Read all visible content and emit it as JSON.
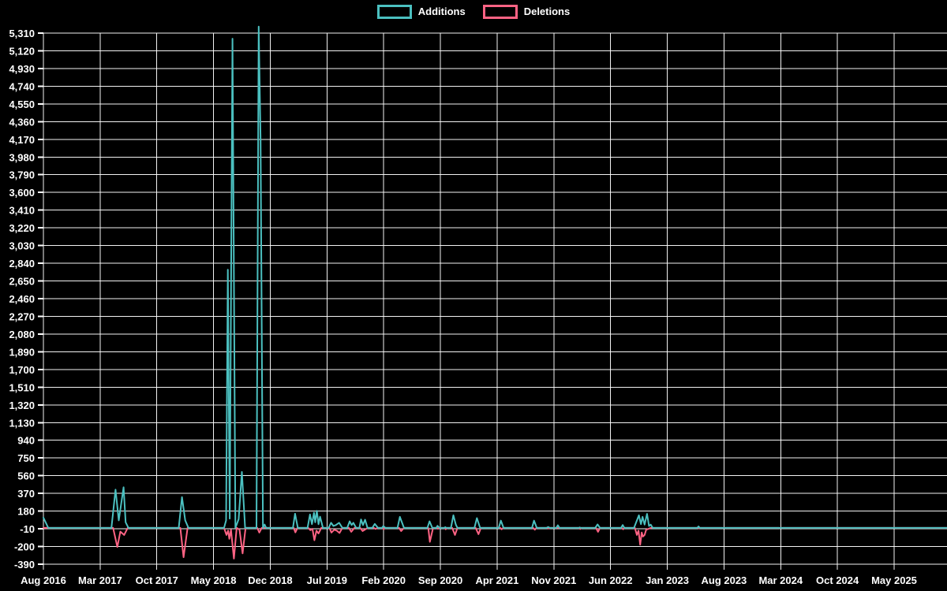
{
  "legend": {
    "position": "top",
    "items": [
      {
        "label": "Additions",
        "color": "#4bc0c0"
      },
      {
        "label": "Deletions",
        "color": "#ff6384"
      }
    ]
  },
  "chart_data": {
    "type": "line",
    "title": "",
    "background_color": "#000000",
    "grid_color": "#ffffff",
    "label_color": "#ffffff",
    "grid": true,
    "legend_position": "top",
    "x_axis": {
      "unit": "months since Aug 2016",
      "tick_labels": [
        "Aug 2016",
        "Mar 2017",
        "Oct 2017",
        "May 2018",
        "Dec 2018",
        "Jul 2019",
        "Feb 2020",
        "Sep 2020",
        "Apr 2021",
        "Nov 2021",
        "Jun 2022",
        "Jan 2023",
        "Aug 2023",
        "Mar 2024",
        "Oct 2024",
        "May 2025"
      ],
      "tick_positions_months": [
        0,
        7,
        14,
        21,
        28,
        35,
        42,
        49,
        56,
        63,
        70,
        77,
        84,
        91,
        98,
        105
      ],
      "data_end_month": 111.8
    },
    "y_axis": {
      "min": -390,
      "max": 5310,
      "step": 190,
      "tick_labels": [
        "5,310",
        "5,120",
        "4,930",
        "4,740",
        "4,550",
        "4,360",
        "4,170",
        "3,980",
        "3,790",
        "3,600",
        "3,410",
        "3,220",
        "3,030",
        "2,840",
        "2,650",
        "2,460",
        "2,270",
        "2,080",
        "1,890",
        "1,700",
        "1,510",
        "1,320",
        "1,130",
        "940",
        "750",
        "560",
        "370",
        "180",
        "-10",
        "-200",
        "-390"
      ]
    },
    "series": [
      {
        "name": "Additions",
        "color": "#4bc0c0",
        "points": [
          [
            0,
            110
          ],
          [
            0.6,
            0
          ],
          [
            8.4,
            0
          ],
          [
            8.9,
            410
          ],
          [
            9.3,
            80
          ],
          [
            9.9,
            435
          ],
          [
            10.15,
            60
          ],
          [
            10.5,
            0
          ],
          [
            16.7,
            0
          ],
          [
            17.1,
            330
          ],
          [
            17.5,
            80
          ],
          [
            17.9,
            0
          ],
          [
            22.3,
            0
          ],
          [
            22.55,
            80
          ],
          [
            22.76,
            2770
          ],
          [
            23.0,
            100
          ],
          [
            23.34,
            5250
          ],
          [
            23.7,
            0
          ],
          [
            24.1,
            93
          ],
          [
            24.5,
            600
          ],
          [
            24.9,
            0
          ],
          [
            26.3,
            0
          ],
          [
            26.57,
            5380
          ],
          [
            26.81,
            4160
          ],
          [
            27.1,
            0
          ],
          [
            27.3,
            35
          ],
          [
            27.5,
            0
          ],
          [
            30.8,
            0
          ],
          [
            31.06,
            152
          ],
          [
            31.4,
            0
          ],
          [
            32.6,
            0
          ],
          [
            32.9,
            144
          ],
          [
            33.15,
            40
          ],
          [
            33.4,
            163
          ],
          [
            33.55,
            60
          ],
          [
            33.75,
            183
          ],
          [
            33.95,
            40
          ],
          [
            34.15,
            120
          ],
          [
            34.5,
            0
          ],
          [
            35.2,
            0
          ],
          [
            35.5,
            55
          ],
          [
            35.8,
            20
          ],
          [
            36.1,
            30
          ],
          [
            36.5,
            55
          ],
          [
            36.9,
            0
          ],
          [
            37.5,
            0
          ],
          [
            37.8,
            70
          ],
          [
            38.05,
            30
          ],
          [
            38.25,
            55
          ],
          [
            38.6,
            0
          ],
          [
            39.0,
            0
          ],
          [
            39.2,
            90
          ],
          [
            39.45,
            30
          ],
          [
            39.7,
            88
          ],
          [
            40.0,
            0
          ],
          [
            40.6,
            0
          ],
          [
            40.9,
            42
          ],
          [
            41.3,
            0
          ],
          [
            41.8,
            0
          ],
          [
            41.95,
            20
          ],
          [
            42.2,
            0
          ],
          [
            43.7,
            0
          ],
          [
            44.0,
            118
          ],
          [
            44.5,
            0
          ],
          [
            47.4,
            0
          ],
          [
            47.66,
            70
          ],
          [
            48.0,
            0
          ],
          [
            48.5,
            0
          ],
          [
            48.64,
            22
          ],
          [
            48.9,
            0
          ],
          [
            49.5,
            0
          ],
          [
            49.6,
            8
          ],
          [
            49.7,
            0
          ],
          [
            50.3,
            0
          ],
          [
            50.6,
            135
          ],
          [
            50.9,
            35
          ],
          [
            51.1,
            0
          ],
          [
            53.2,
            0
          ],
          [
            53.5,
            105
          ],
          [
            53.9,
            0
          ],
          [
            56.2,
            0
          ],
          [
            56.46,
            78
          ],
          [
            56.8,
            0
          ],
          [
            60.3,
            0
          ],
          [
            60.56,
            78
          ],
          [
            60.9,
            0
          ],
          [
            62.1,
            0
          ],
          [
            62.3,
            10
          ],
          [
            62.5,
            0
          ],
          [
            63.3,
            0
          ],
          [
            63.5,
            28
          ],
          [
            63.7,
            0
          ],
          [
            66.1,
            0
          ],
          [
            66.2,
            5
          ],
          [
            66.3,
            0
          ],
          [
            68.1,
            0
          ],
          [
            68.4,
            37
          ],
          [
            68.7,
            0
          ],
          [
            71.3,
            0
          ],
          [
            71.5,
            30
          ],
          [
            71.7,
            0
          ],
          [
            72.9,
            0
          ],
          [
            73.5,
            135
          ],
          [
            73.75,
            40
          ],
          [
            73.95,
            118
          ],
          [
            74.2,
            35
          ],
          [
            74.5,
            150
          ],
          [
            74.75,
            20
          ],
          [
            74.95,
            35
          ],
          [
            75.2,
            0
          ],
          [
            80.7,
            0
          ],
          [
            80.86,
            15
          ],
          [
            81.0,
            0
          ],
          [
            111.8,
            0
          ]
        ]
      },
      {
        "name": "Deletions",
        "color": "#ff6384",
        "points": [
          [
            0,
            0
          ],
          [
            8.6,
            0
          ],
          [
            9.13,
            -205
          ],
          [
            9.5,
            -40
          ],
          [
            9.96,
            -76
          ],
          [
            10.4,
            0
          ],
          [
            16.9,
            0
          ],
          [
            17.3,
            -315
          ],
          [
            17.8,
            0
          ],
          [
            22.3,
            0
          ],
          [
            22.6,
            -76
          ],
          [
            22.8,
            -30
          ],
          [
            22.95,
            -118
          ],
          [
            23.15,
            -20
          ],
          [
            23.51,
            -330
          ],
          [
            23.85,
            0
          ],
          [
            24.2,
            -20
          ],
          [
            24.58,
            -273
          ],
          [
            24.95,
            0
          ],
          [
            26.4,
            0
          ],
          [
            26.65,
            -50
          ],
          [
            26.95,
            0
          ],
          [
            30.9,
            0
          ],
          [
            31.1,
            -48
          ],
          [
            31.35,
            0
          ],
          [
            32.7,
            0
          ],
          [
            32.95,
            -25
          ],
          [
            33.2,
            -10
          ],
          [
            33.45,
            -133
          ],
          [
            33.7,
            -30
          ],
          [
            33.95,
            -60
          ],
          [
            34.3,
            0
          ],
          [
            35.3,
            0
          ],
          [
            35.55,
            -50
          ],
          [
            35.9,
            -20
          ],
          [
            36.2,
            -30
          ],
          [
            36.55,
            -55
          ],
          [
            36.9,
            0
          ],
          [
            37.7,
            0
          ],
          [
            38.0,
            -42
          ],
          [
            38.4,
            0
          ],
          [
            39.1,
            0
          ],
          [
            39.4,
            -34
          ],
          [
            39.75,
            -15
          ],
          [
            40.0,
            0
          ],
          [
            40.8,
            0
          ],
          [
            41.0,
            -12
          ],
          [
            41.2,
            0
          ],
          [
            41.9,
            0
          ],
          [
            42.0,
            -15
          ],
          [
            42.15,
            0
          ],
          [
            43.9,
            0
          ],
          [
            44.15,
            -34
          ],
          [
            44.5,
            0
          ],
          [
            47.5,
            0
          ],
          [
            47.7,
            -150
          ],
          [
            48.1,
            0
          ],
          [
            48.6,
            0
          ],
          [
            48.7,
            -10
          ],
          [
            48.85,
            0
          ],
          [
            49.55,
            0
          ],
          [
            49.65,
            -15
          ],
          [
            49.8,
            0
          ],
          [
            50.45,
            0
          ],
          [
            50.8,
            -76
          ],
          [
            51.1,
            0
          ],
          [
            53.35,
            0
          ],
          [
            53.7,
            -68
          ],
          [
            54.0,
            0
          ],
          [
            56.4,
            0
          ],
          [
            56.55,
            -15
          ],
          [
            56.75,
            0
          ],
          [
            60.45,
            0
          ],
          [
            60.65,
            -20
          ],
          [
            60.85,
            0
          ],
          [
            62.25,
            0
          ],
          [
            62.35,
            -8
          ],
          [
            62.5,
            0
          ],
          [
            66.15,
            0
          ],
          [
            66.25,
            -12
          ],
          [
            66.4,
            0
          ],
          [
            68.2,
            0
          ],
          [
            68.45,
            -42
          ],
          [
            68.7,
            0
          ],
          [
            71.4,
            0
          ],
          [
            71.55,
            -15
          ],
          [
            71.7,
            0
          ],
          [
            73.0,
            0
          ],
          [
            73.25,
            -76
          ],
          [
            73.45,
            -30
          ],
          [
            73.66,
            -180
          ],
          [
            73.85,
            -50
          ],
          [
            74.0,
            -93
          ],
          [
            74.2,
            -76
          ],
          [
            74.4,
            -20
          ],
          [
            74.7,
            -10
          ],
          [
            74.95,
            0
          ],
          [
            80.8,
            0
          ],
          [
            80.9,
            -5
          ],
          [
            81.0,
            0
          ],
          [
            111.8,
            0
          ]
        ]
      }
    ]
  }
}
